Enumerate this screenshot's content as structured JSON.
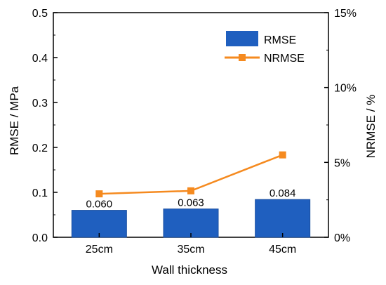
{
  "chart_data": {
    "type": "bar",
    "categories": [
      "25cm",
      "35cm",
      "45cm"
    ],
    "series": [
      {
        "name": "RMSE",
        "type": "bar",
        "axis": "left",
        "values": [
          0.06,
          0.063,
          0.084
        ],
        "data_labels": [
          "0.060",
          "0.063",
          "0.084"
        ],
        "color": "#1f5fbf"
      },
      {
        "name": "NRMSE",
        "type": "line",
        "axis": "right",
        "values": [
          2.9,
          3.1,
          5.5
        ],
        "color": "#f58a1f"
      }
    ],
    "xlabel": "Wall thickness",
    "ylabel": "RMSE / MPa",
    "y2label": "NRMSE / %",
    "ylim": [
      0,
      0.5
    ],
    "y2lim": [
      0,
      15
    ],
    "yticks": [
      "0.0",
      "0.1",
      "0.2",
      "0.3",
      "0.4",
      "0.5"
    ],
    "y2ticks": [
      "0%",
      "5%",
      "10%",
      "15%"
    ],
    "grid": false,
    "legend": "top-right"
  }
}
